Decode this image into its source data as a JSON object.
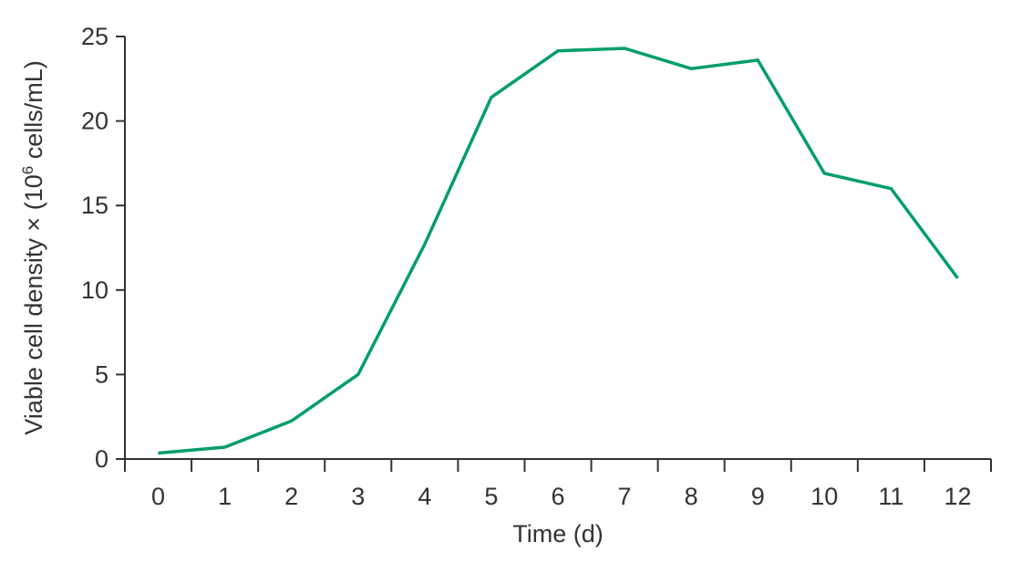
{
  "chart_data": {
    "type": "line",
    "title": "",
    "xlabel": "Time (d)",
    "ylabel": {
      "prefix": "Viable cell density × (10",
      "superscript": "6",
      "suffix": " cells/mL)"
    },
    "x": [
      0,
      1,
      2,
      3,
      4,
      5,
      6,
      7,
      8,
      9,
      10,
      11,
      12
    ],
    "series": [
      {
        "values": [
          0.35,
          0.7,
          2.25,
          5.0,
          12.7,
          21.4,
          24.15,
          24.3,
          23.1,
          23.6,
          16.9,
          16.0,
          10.7
        ],
        "color": "#009e6b"
      }
    ],
    "xlim": [
      -0.5,
      12.5
    ],
    "ylim": [
      0,
      25
    ],
    "x_ticks": [
      "0",
      "1",
      "2",
      "3",
      "4",
      "5",
      "6",
      "7",
      "8",
      "9",
      "10",
      "11",
      "12"
    ],
    "y_ticks": [
      "0",
      "5",
      "10",
      "15",
      "20",
      "25"
    ],
    "grid": false,
    "legend": "none"
  }
}
